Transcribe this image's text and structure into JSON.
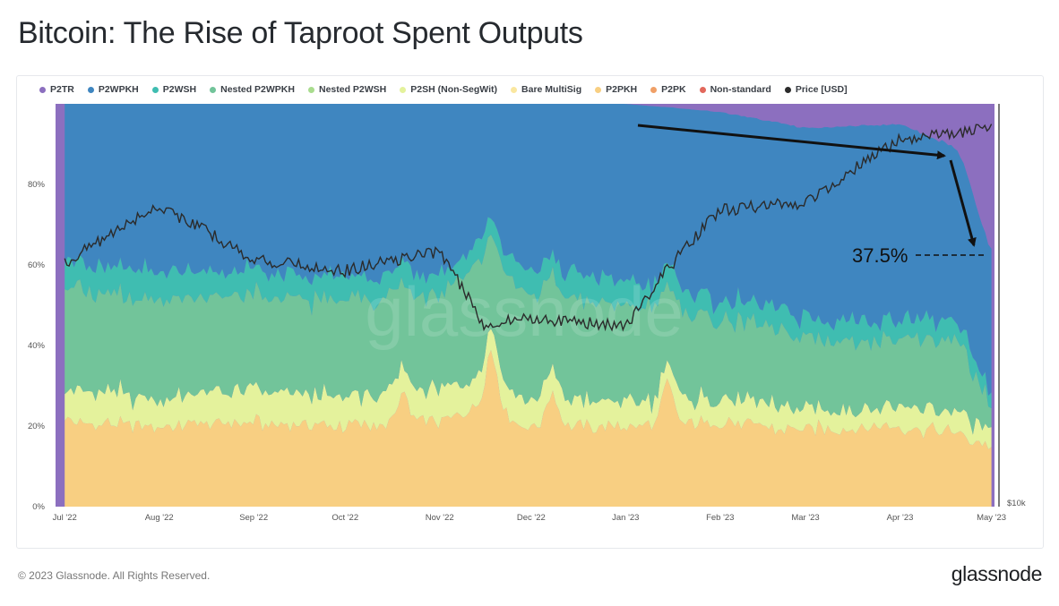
{
  "title": "Bitcoin: The Rise of Taproot Spent Outputs",
  "footer": {
    "copyright": "© 2023 Glassnode. All Rights Reserved.",
    "brand": "glassnode"
  },
  "watermark": "glassnode",
  "legend": [
    {
      "label": "P2TR",
      "color": "#8c6fbf"
    },
    {
      "label": "P2WPKH",
      "color": "#3f86c0"
    },
    {
      "label": "P2WSH",
      "color": "#3fbdb1"
    },
    {
      "label": "Nested P2WPKH",
      "color": "#72c49a"
    },
    {
      "label": "Nested P2WSH",
      "color": "#a9dc8e"
    },
    {
      "label": "P2SH (Non-SegWit)",
      "color": "#e4f29c"
    },
    {
      "label": "Bare MultiSig",
      "color": "#fae7a0"
    },
    {
      "label": "P2PKH",
      "color": "#f8cf82"
    },
    {
      "label": "P2PK",
      "color": "#f0a067"
    },
    {
      "label": "Non-standard",
      "color": "#e2685c"
    },
    {
      "label": "Price [USD]",
      "color": "#2b2b2b"
    }
  ],
  "chart_data": {
    "type": "area",
    "stacked": true,
    "normalized": true,
    "title": "Bitcoin: The Rise of Taproot Spent Outputs",
    "x_tick_labels": [
      "Jul '22",
      "Aug '22",
      "Sep '22",
      "Oct '22",
      "Nov '22",
      "Dec '22",
      "Jan '23",
      "Feb '23",
      "Mar '23",
      "Apr '23",
      "May '23"
    ],
    "y_tick_labels": [
      "0%",
      "20%",
      "40%",
      "60%",
      "80%"
    ],
    "y_ticks": [
      0,
      20,
      40,
      60,
      80
    ],
    "ylim": [
      0,
      100
    ],
    "y2_tick_labels": [
      "$10k"
    ],
    "y2_scale": "log",
    "x": [
      "2022-07-01",
      "2022-08-01",
      "2022-09-01",
      "2022-10-01",
      "2022-11-01",
      "2022-11-15",
      "2022-12-01",
      "2023-01-01",
      "2023-02-01",
      "2023-03-01",
      "2023-04-01",
      "2023-04-20",
      "2023-05-01"
    ],
    "series": [
      {
        "name": "P2PKH",
        "values": [
          21,
          20,
          21,
          20,
          21,
          25,
          20,
          20,
          21,
          19,
          20,
          18,
          15
        ]
      },
      {
        "name": "P2SH (Non-SegWit)",
        "values": [
          8,
          7,
          8,
          7,
          8,
          8,
          7,
          6,
          6,
          5,
          5,
          5,
          4
        ]
      },
      {
        "name": "Nested P2WPKH",
        "values": [
          25,
          25,
          23,
          24,
          23,
          28,
          26,
          24,
          20,
          18,
          17,
          18,
          6
        ]
      },
      {
        "name": "P2WSH",
        "values": [
          7,
          7,
          6,
          6,
          5,
          5,
          6,
          6,
          5,
          5,
          5,
          5,
          3
        ]
      },
      {
        "name": "P2WPKH",
        "values": [
          39,
          41,
          42,
          43,
          43,
          34,
          41,
          44,
          46,
          47,
          48,
          43,
          35
        ]
      },
      {
        "name": "P2TR",
        "values": [
          0,
          0,
          0,
          0,
          0,
          0,
          0,
          0,
          2,
          6,
          5,
          11,
          37
        ]
      }
    ],
    "price_series": {
      "name": "Price [USD]",
      "values": [
        19800,
        23300,
        20000,
        19400,
        20500,
        16700,
        17000,
        16600,
        23000,
        23500,
        28000,
        28500,
        29200
      ]
    },
    "annotations": [
      {
        "text": "37.5%"
      }
    ]
  }
}
